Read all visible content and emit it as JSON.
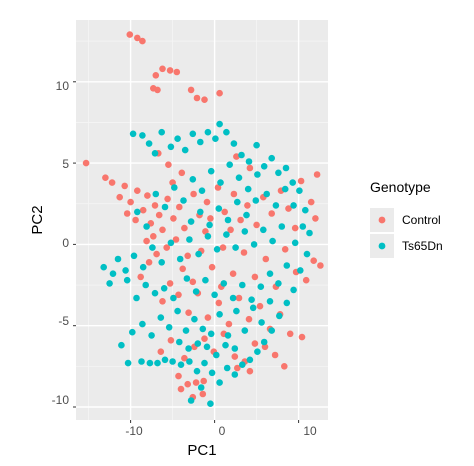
{
  "chart_data": {
    "type": "scatter",
    "title": "",
    "xlabel": "PC1",
    "ylabel": "PC2",
    "xlim": [
      -16.5,
      13.5
    ],
    "ylim": [
      -10.8,
      13.8
    ],
    "xticks": [
      -10,
      0,
      10
    ],
    "yticks": [
      -10,
      -5,
      0,
      5,
      10
    ],
    "xtick_labels": [
      "-10",
      "0",
      "10"
    ],
    "ytick_labels": [
      "-10",
      "-5",
      "0",
      "5",
      "10"
    ],
    "grid": true,
    "legend": {
      "title": "Genotype",
      "placement": "right",
      "entries": [
        "Control",
        "Ts65Dn"
      ]
    },
    "series": [
      {
        "name": "Control",
        "color": "#F8766D",
        "points": [
          [
            -10.1,
            12.9
          ],
          [
            -9.2,
            12.7
          ],
          [
            -8.6,
            12.5
          ],
          [
            -7.0,
            10.4
          ],
          [
            -6.2,
            10.8
          ],
          [
            -5.3,
            10.7
          ],
          [
            -4.5,
            10.6
          ],
          [
            -7.3,
            9.6
          ],
          [
            -6.8,
            9.5
          ],
          [
            -2.8,
            9.5
          ],
          [
            -2.1,
            9.0
          ],
          [
            -1.2,
            8.9
          ],
          [
            0.6,
            9.3
          ],
          [
            -15.3,
            5.0
          ],
          [
            -13.0,
            4.1
          ],
          [
            -12.2,
            3.8
          ],
          [
            -11.3,
            2.9
          ],
          [
            -10.7,
            3.6
          ],
          [
            -10.0,
            2.6
          ],
          [
            -9.2,
            3.3
          ],
          [
            -8.5,
            2.1
          ],
          [
            -8.0,
            3.0
          ],
          [
            -7.6,
            1.3
          ],
          [
            -7.1,
            2.4
          ],
          [
            -9.4,
            1.5
          ],
          [
            -10.4,
            1.9
          ],
          [
            -6.6,
            1.8
          ],
          [
            -6.2,
            0.9
          ],
          [
            -5.6,
            2.8
          ],
          [
            -4.9,
            1.6
          ],
          [
            -4.2,
            2.3
          ],
          [
            -3.6,
            1.0
          ],
          [
            -7.3,
            0.5
          ],
          [
            -8.1,
            0.2
          ],
          [
            -6.9,
            -0.6
          ],
          [
            -5.7,
            -0.2
          ],
          [
            -4.6,
            0.3
          ],
          [
            -3.2,
            -0.7
          ],
          [
            -5.0,
            3.8
          ],
          [
            -3.9,
            4.4
          ],
          [
            -2.5,
            3.1
          ],
          [
            -1.8,
            1.8
          ],
          [
            -0.9,
            2.6
          ],
          [
            0.4,
            3.5
          ],
          [
            1.2,
            2.0
          ],
          [
            2.3,
            3.1
          ],
          [
            3.1,
            1.5
          ],
          [
            3.9,
            2.4
          ],
          [
            5.0,
            1.2
          ],
          [
            5.8,
            2.9
          ],
          [
            6.8,
            1.9
          ],
          [
            7.9,
            3.3
          ],
          [
            8.8,
            2.2
          ],
          [
            9.6,
            1.0
          ],
          [
            10.3,
            3.9
          ],
          [
            11.5,
            2.6
          ],
          [
            12.2,
            4.3
          ],
          [
            12.0,
            1.6
          ],
          [
            11.8,
            -1.0
          ],
          [
            12.6,
            -1.3
          ],
          [
            10.9,
            -2.2
          ],
          [
            9.7,
            -1.7
          ],
          [
            8.4,
            -0.3
          ],
          [
            7.3,
            -2.6
          ],
          [
            6.1,
            -0.9
          ],
          [
            4.8,
            -2.0
          ],
          [
            3.5,
            -0.5
          ],
          [
            2.2,
            -1.8
          ],
          [
            1.0,
            -0.2
          ],
          [
            -0.3,
            -1.4
          ],
          [
            -1.6,
            -0.4
          ],
          [
            -2.6,
            -2.3
          ],
          [
            -3.8,
            -1.5
          ],
          [
            -4.3,
            -3.1
          ],
          [
            -5.3,
            -2.4
          ],
          [
            -6.2,
            -3.5
          ],
          [
            -3.1,
            -4.2
          ],
          [
            -2.0,
            -3.0
          ],
          [
            -0.8,
            -4.5
          ],
          [
            0.5,
            -3.6
          ],
          [
            1.7,
            -4.9
          ],
          [
            2.9,
            -3.3
          ],
          [
            4.1,
            -4.6
          ],
          [
            5.4,
            -3.8
          ],
          [
            6.6,
            -5.2
          ],
          [
            7.8,
            -4.3
          ],
          [
            9.0,
            -5.5
          ],
          [
            10.4,
            -5.7
          ],
          [
            -1.2,
            -5.8
          ],
          [
            -0.1,
            -6.6
          ],
          [
            1.1,
            -5.5
          ],
          [
            2.4,
            -6.9
          ],
          [
            3.6,
            -7.2
          ],
          [
            4.8,
            -6.1
          ],
          [
            4.2,
            -7.8
          ],
          [
            2.7,
            -7.6
          ],
          [
            -2.4,
            -6.3
          ],
          [
            -3.6,
            -7.0
          ],
          [
            -5.2,
            -5.9
          ],
          [
            -6.4,
            -6.6
          ],
          [
            -4.3,
            -8.1
          ],
          [
            -3.2,
            -8.6
          ],
          [
            -2.2,
            -8.5
          ],
          [
            -1.4,
            -9.2
          ],
          [
            -2.6,
            -9.4
          ],
          [
            -1.3,
            -8.4
          ],
          [
            -4.0,
            -8.9
          ],
          [
            0.8,
            -2.6
          ],
          [
            1.9,
            0.9
          ],
          [
            -1.1,
            0.8
          ],
          [
            -8.8,
            -2.0
          ],
          [
            -7.8,
            -1.1
          ],
          [
            2.6,
            5.4
          ],
          [
            4.2,
            4.7
          ],
          [
            -5.5,
            4.9
          ],
          [
            -6.7,
            5.6
          ],
          [
            6.0,
            -6.3
          ],
          [
            7.2,
            -6.8
          ],
          [
            8.3,
            -7.5
          ],
          [
            -0.5,
            1.6
          ]
        ]
      },
      {
        "name": "Ts65Dn",
        "color": "#00BFC4",
        "points": [
          [
            -9.7,
            6.8
          ],
          [
            -8.6,
            6.7
          ],
          [
            -7.8,
            6.2
          ],
          [
            -7.1,
            5.6
          ],
          [
            -6.3,
            6.9
          ],
          [
            -5.2,
            6.0
          ],
          [
            -4.4,
            6.5
          ],
          [
            -3.5,
            5.8
          ],
          [
            -2.6,
            6.8
          ],
          [
            -1.7,
            6.3
          ],
          [
            -0.8,
            6.9
          ],
          [
            0.1,
            6.5
          ],
          [
            0.6,
            7.4
          ],
          [
            1.4,
            6.9
          ],
          [
            2.3,
            6.2
          ],
          [
            3.2,
            5.5
          ],
          [
            4.1,
            5.1
          ],
          [
            5.0,
            6.1
          ],
          [
            5.9,
            4.8
          ],
          [
            6.8,
            5.3
          ],
          [
            7.6,
            4.4
          ],
          [
            8.5,
            4.7
          ],
          [
            9.3,
            3.8
          ],
          [
            10.1,
            3.3
          ],
          [
            10.8,
            2.1
          ],
          [
            11.3,
            0.7
          ],
          [
            11.0,
            -0.6
          ],
          [
            10.2,
            -1.6
          ],
          [
            9.4,
            -2.8
          ],
          [
            8.6,
            -3.6
          ],
          [
            7.7,
            -4.4
          ],
          [
            6.8,
            -5.3
          ],
          [
            5.9,
            -6.0
          ],
          [
            5.1,
            -6.6
          ],
          [
            4.2,
            -7.1
          ],
          [
            3.3,
            -7.4
          ],
          [
            2.4,
            -8.0
          ],
          [
            1.5,
            -7.6
          ],
          [
            0.6,
            -8.5
          ],
          [
            -0.3,
            -7.9
          ],
          [
            -1.2,
            -7.3
          ],
          [
            -2.1,
            -7.8
          ],
          [
            -3.0,
            -7.2
          ],
          [
            -4.0,
            -7.4
          ],
          [
            -5.0,
            -7.2
          ],
          [
            -5.9,
            -7.1
          ],
          [
            -6.8,
            -7.3
          ],
          [
            -7.7,
            -7.3
          ],
          [
            -8.7,
            -7.2
          ],
          [
            -10.3,
            -7.3
          ],
          [
            -11.1,
            -6.2
          ],
          [
            -9.8,
            -5.4
          ],
          [
            -8.6,
            -4.9
          ],
          [
            -7.5,
            -5.6
          ],
          [
            -6.4,
            -4.5
          ],
          [
            -5.4,
            -5.1
          ],
          [
            -4.4,
            -4.1
          ],
          [
            -3.4,
            -5.3
          ],
          [
            -2.4,
            -4.6
          ],
          [
            -1.4,
            -5.2
          ],
          [
            -0.4,
            -5.5
          ],
          [
            0.6,
            -4.3
          ],
          [
            1.6,
            -5.6
          ],
          [
            2.6,
            -4.1
          ],
          [
            3.6,
            -5.3
          ],
          [
            4.6,
            -3.9
          ],
          [
            5.6,
            -4.8
          ],
          [
            6.6,
            -3.5
          ],
          [
            7.6,
            -2.4
          ],
          [
            8.6,
            -1.3
          ],
          [
            9.6,
            0.1
          ],
          [
            10.5,
            1.1
          ],
          [
            -12.1,
            -1.8
          ],
          [
            -13.2,
            -1.4
          ],
          [
            -12.5,
            -2.4
          ],
          [
            -11.5,
            -0.9
          ],
          [
            -10.6,
            -1.6
          ],
          [
            -9.6,
            -0.7
          ],
          [
            -8.5,
            -1.4
          ],
          [
            -7.4,
            -0.2
          ],
          [
            -6.3,
            -1.1
          ],
          [
            -5.2,
            0.1
          ],
          [
            -4.1,
            -0.9
          ],
          [
            -3.0,
            0.3
          ],
          [
            -1.9,
            -0.6
          ],
          [
            -0.8,
            0.5
          ],
          [
            0.3,
            -0.3
          ],
          [
            1.4,
            0.6
          ],
          [
            2.5,
            -0.2
          ],
          [
            3.6,
            0.8
          ],
          [
            4.7,
            0.0
          ],
          [
            5.8,
            0.9
          ],
          [
            6.9,
            0.2
          ],
          [
            8.0,
            1.1
          ],
          [
            -9.2,
            2.0
          ],
          [
            -8.1,
            1.1
          ],
          [
            -7.0,
            3.1
          ],
          [
            -5.9,
            2.3
          ],
          [
            -4.8,
            3.5
          ],
          [
            -3.7,
            2.7
          ],
          [
            -2.6,
            4.0
          ],
          [
            -1.5,
            3.3
          ],
          [
            -0.4,
            4.5
          ],
          [
            0.7,
            3.8
          ],
          [
            1.8,
            4.9
          ],
          [
            2.9,
            4.1
          ],
          [
            4.0,
            3.4
          ],
          [
            5.1,
            4.3
          ],
          [
            6.2,
            3.1
          ],
          [
            7.3,
            2.4
          ],
          [
            8.4,
            3.4
          ],
          [
            9.4,
            2.4
          ],
          [
            -2.8,
            1.4
          ],
          [
            -1.7,
            2.0
          ],
          [
            -0.6,
            1.2
          ],
          [
            0.5,
            2.2
          ],
          [
            1.6,
            1.5
          ],
          [
            2.7,
            2.6
          ],
          [
            3.8,
            1.8
          ],
          [
            4.9,
            2.7
          ],
          [
            -3.3,
            -2.1
          ],
          [
            -2.2,
            -2.9
          ],
          [
            -1.1,
            -2.2
          ],
          [
            0.0,
            -3.1
          ],
          [
            1.1,
            -2.4
          ],
          [
            2.2,
            -3.3
          ],
          [
            3.3,
            -2.5
          ],
          [
            4.4,
            -3.4
          ],
          [
            5.5,
            -2.6
          ],
          [
            6.6,
            -1.8
          ],
          [
            -6.0,
            -2.7
          ],
          [
            -4.9,
            -3.3
          ],
          [
            -7.1,
            -3.0
          ],
          [
            -8.2,
            -2.5
          ],
          [
            -9.3,
            -3.3
          ],
          [
            -10.4,
            -2.2
          ],
          [
            -0.9,
            -6.3
          ],
          [
            0.2,
            -6.8
          ],
          [
            1.3,
            -6.2
          ],
          [
            2.4,
            -6.4
          ],
          [
            -2.0,
            -6.1
          ],
          [
            -3.1,
            -6.4
          ],
          [
            -4.2,
            -6.0
          ],
          [
            -2.8,
            -9.6
          ],
          [
            -1.6,
            -8.8
          ],
          [
            -0.5,
            -9.8
          ]
        ]
      }
    ]
  }
}
